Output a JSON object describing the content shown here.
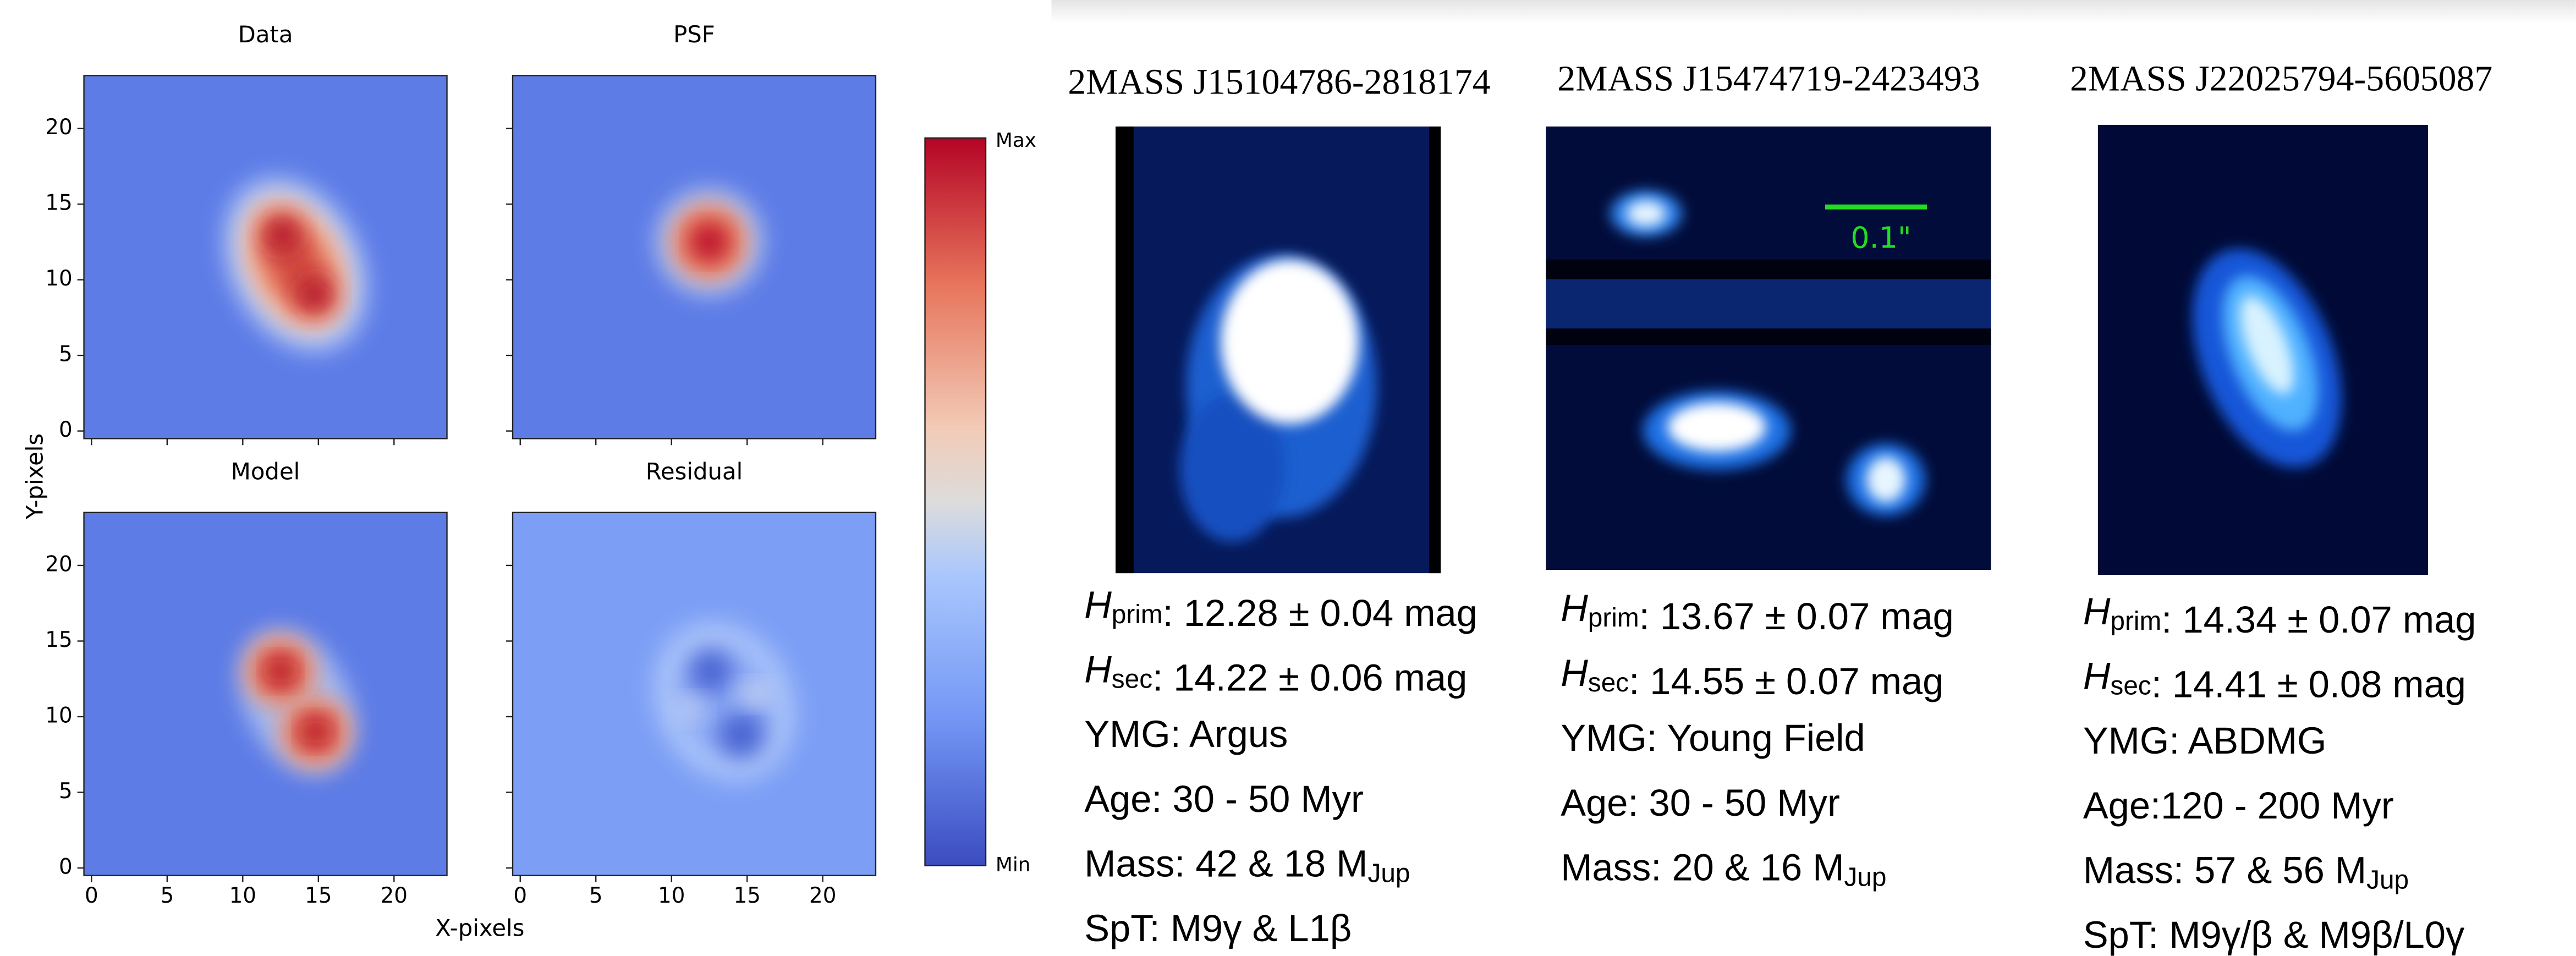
{
  "figure": {
    "panels": [
      {
        "title": "Data"
      },
      {
        "title": "PSF"
      },
      {
        "title": "Model"
      },
      {
        "title": "Residual"
      }
    ],
    "y_label": "Y-pixels",
    "x_label": "X-pixels",
    "xticks": [
      0,
      5,
      10,
      15,
      20
    ],
    "yticks": [
      0,
      5,
      10,
      15,
      20
    ],
    "colorbar": {
      "max": "Max",
      "min": "Min"
    }
  },
  "objects": [
    {
      "name": "2MASS J15104786-2818174",
      "lines": [
        [
          {
            "italic": "H"
          },
          {
            "sub": "prim"
          },
          ": 12.28 ± 0.04 mag"
        ],
        [
          {
            "italic": "H"
          },
          {
            "sub": "sec"
          },
          ": 14.22 ± 0.06 mag"
        ],
        [
          "YMG: Argus"
        ],
        [
          "Age:  30 - 50 Myr"
        ],
        [
          "Mass: 42 & 18 M",
          {
            "sub": "Jup"
          }
        ],
        [
          "SpT: M9γ & L1β"
        ]
      ]
    },
    {
      "name": "2MASS J15474719-2423493",
      "scale_bar": "0.1\"",
      "lines": [
        [
          {
            "italic": "H"
          },
          {
            "sub": "prim"
          },
          ": 13.67 ± 0.07 mag"
        ],
        [
          {
            "italic": "H"
          },
          {
            "sub": "sec"
          },
          ": 14.55 ± 0.07 mag"
        ],
        [
          "YMG: Young Field"
        ],
        [
          "Age: 30 - 50 Myr"
        ],
        [
          "Mass: 20 & 16 M",
          {
            "sub": "Jup"
          }
        ]
      ]
    },
    {
      "name": "2MASS J22025794-5605087",
      "lines": [
        [
          {
            "italic": "H"
          },
          {
            "sub": "prim"
          },
          ": 14.34 ± 0.07 mag"
        ],
        [
          {
            "italic": "H"
          },
          {
            "sub": "sec"
          },
          ": 14.41 ± 0.08 mag"
        ],
        [
          "YMG: ABDMG"
        ],
        [
          "Age:120 - 200 Myr"
        ],
        [
          "Mass: 57 & 56 M",
          {
            "sub": "Jup"
          }
        ],
        [
          "SpT: M9γ/β & M9β/L0γ"
        ]
      ]
    }
  ]
}
